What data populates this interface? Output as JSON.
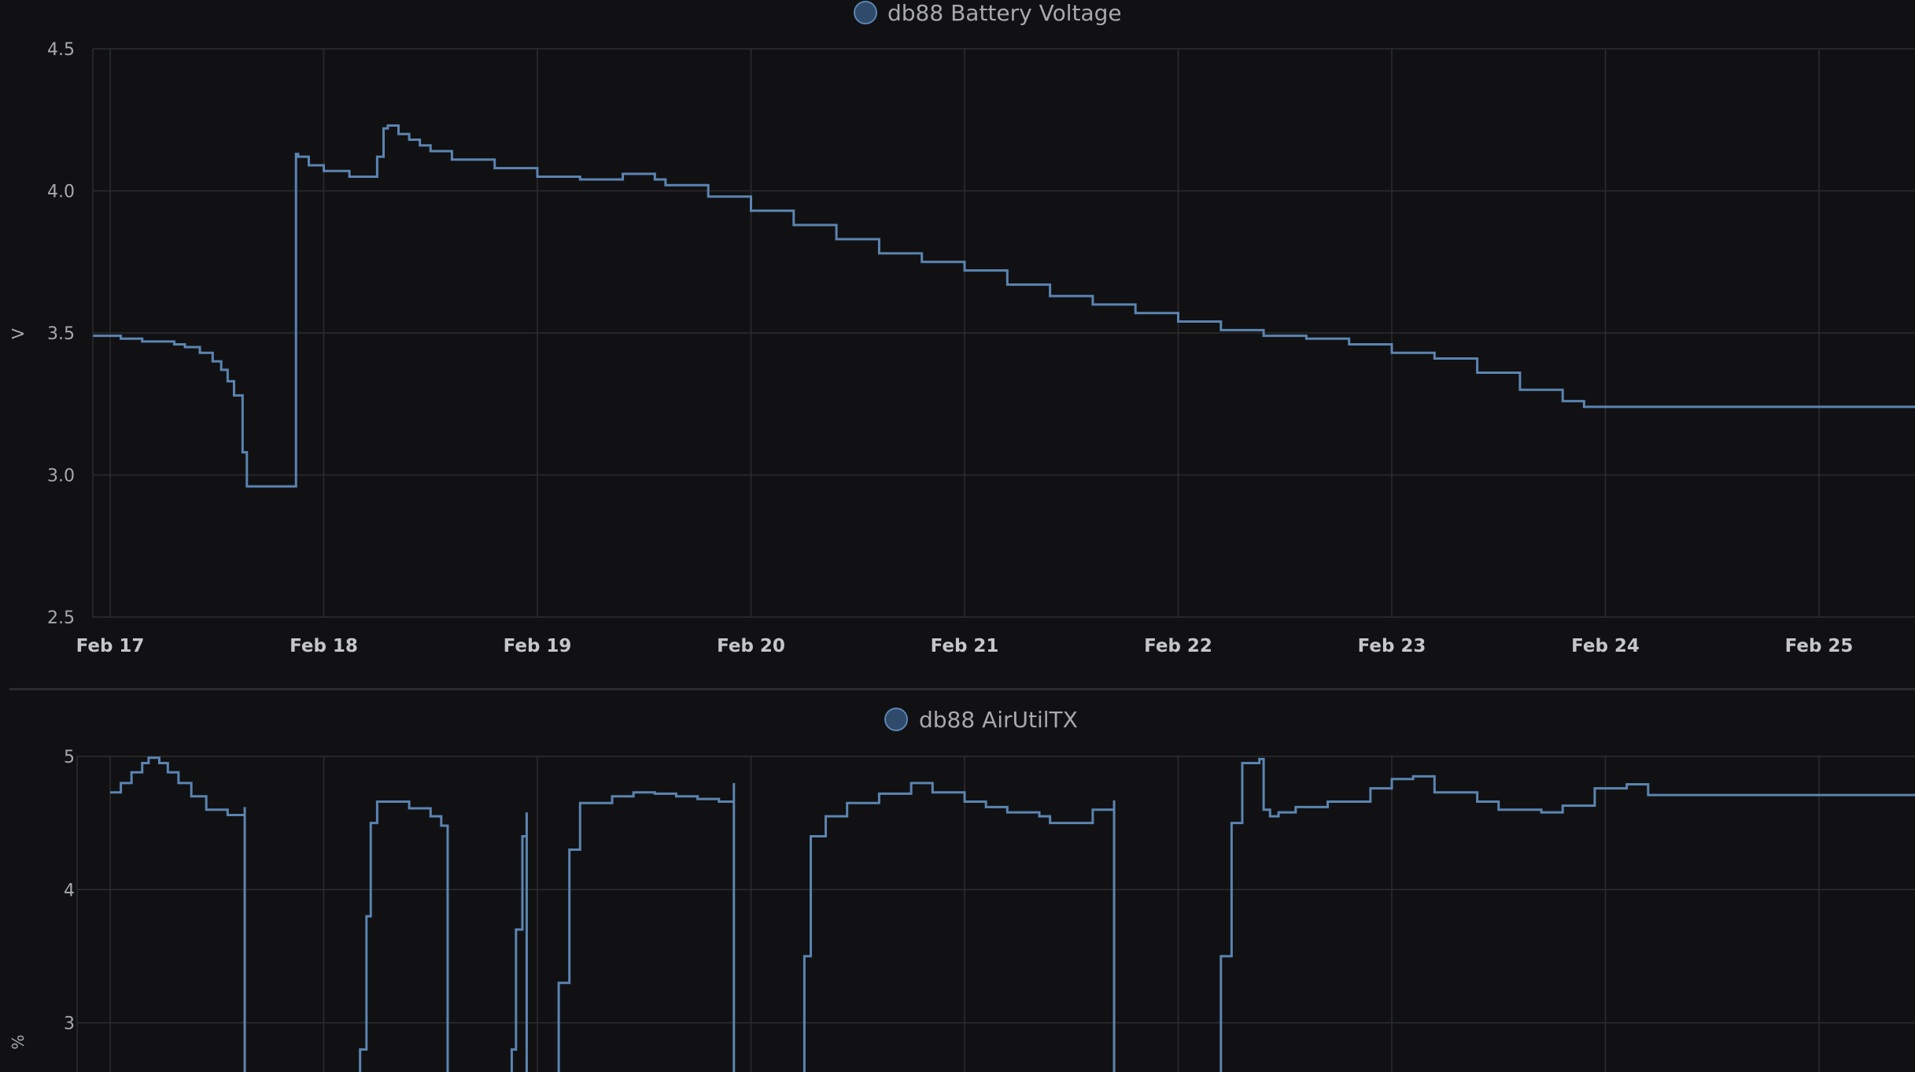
{
  "colors": {
    "background": "#111113",
    "series": "#5b84b1",
    "legend_swatch_fill": "#2f4a6a",
    "grid": "#2c2d30"
  },
  "chart_data": [
    {
      "type": "line",
      "step": true,
      "title": "db88 Battery Voltage",
      "legend": [
        "db88 Battery Voltage"
      ],
      "legend_position": "top-center",
      "ylabel": "V",
      "xlabel": "",
      "ylim": [
        2.5,
        4.5
      ],
      "y_ticks": [
        "2.5",
        "3.0",
        "3.5",
        "4.0",
        "4.5"
      ],
      "x_ticks": [
        "Feb 17",
        "Feb 18",
        "Feb 19",
        "Feb 20",
        "Feb 21",
        "Feb 22",
        "Feb 23",
        "Feb 24",
        "Feb 25"
      ],
      "grid": true,
      "series": [
        {
          "name": "db88 Battery Voltage",
          "x": [
            -0.08,
            0.05,
            0.15,
            0.3,
            0.35,
            0.42,
            0.48,
            0.52,
            0.55,
            0.58,
            0.6,
            0.62,
            0.64,
            0.66,
            0.7,
            0.86,
            0.87,
            0.88,
            0.93,
            1.0,
            1.12,
            1.2,
            1.25,
            1.28,
            1.3,
            1.35,
            1.4,
            1.45,
            1.5,
            1.6,
            1.8,
            2.0,
            2.2,
            2.4,
            2.45,
            2.55,
            2.6,
            2.8,
            3.0,
            3.2,
            3.4,
            3.6,
            3.8,
            4.0,
            4.2,
            4.4,
            4.6,
            4.8,
            5.0,
            5.2,
            5.4,
            5.6,
            5.8,
            6.0,
            6.2,
            6.4,
            6.6,
            6.8,
            6.9,
            6.95,
            7.0,
            7.05,
            7.08,
            7.1,
            7.11,
            7.5,
            8.0,
            8.5
          ],
          "y": [
            3.49,
            3.48,
            3.47,
            3.46,
            3.45,
            3.43,
            3.4,
            3.37,
            3.33,
            3.28,
            3.28,
            3.08,
            2.96,
            2.96,
            2.96,
            2.96,
            4.13,
            4.12,
            4.09,
            4.07,
            4.05,
            4.05,
            4.12,
            4.22,
            4.23,
            4.2,
            4.18,
            4.16,
            4.14,
            4.11,
            4.08,
            4.05,
            4.04,
            4.06,
            4.06,
            4.04,
            4.02,
            3.98,
            3.93,
            3.88,
            3.83,
            3.78,
            3.75,
            3.72,
            3.67,
            3.63,
            3.6,
            3.57,
            3.54,
            3.51,
            3.49,
            3.48,
            3.46,
            3.43,
            3.41,
            3.36,
            3.3,
            3.26,
            3.24,
            3.24,
            3.24,
            3.24,
            3.24,
            3.24,
            3.24,
            3.24,
            3.24,
            3.24
          ]
        }
      ]
    },
    {
      "type": "line",
      "step": true,
      "title": "db88 AirUtilTX",
      "legend": [
        "db88 AirUtilTX"
      ],
      "legend_position": "top-center",
      "ylabel": "%",
      "xlabel": "",
      "ylim": [
        2.3,
        5
      ],
      "y_ticks": [
        "3",
        "4",
        "5"
      ],
      "grid": true,
      "series": [
        {
          "name": "db88 AirUtilTX",
          "x": [
            0.0,
            0.05,
            0.1,
            0.15,
            0.18,
            0.23,
            0.27,
            0.32,
            0.38,
            0.45,
            0.55,
            0.63,
            0.63,
            1.15,
            1.17,
            1.2,
            1.22,
            1.25,
            1.4,
            1.5,
            1.55,
            1.58,
            1.58,
            1.83,
            1.88,
            1.9,
            1.93,
            1.95,
            1.95,
            2.05,
            2.1,
            2.15,
            2.2,
            2.35,
            2.45,
            2.55,
            2.65,
            2.75,
            2.85,
            2.92,
            2.92,
            3.2,
            3.25,
            3.28,
            3.35,
            3.45,
            3.6,
            3.75,
            3.85,
            4.0,
            4.1,
            4.2,
            4.35,
            4.4,
            4.6,
            4.7,
            4.7,
            5.15,
            5.2,
            5.25,
            5.3,
            5.38,
            5.4,
            5.43,
            5.47,
            5.55,
            5.7,
            5.9,
            6.0,
            6.1,
            6.2,
            6.4,
            6.5,
            6.7,
            6.8,
            6.95,
            7.1,
            7.2,
            7.5,
            8.0,
            8.5
          ],
          "y": [
            4.73,
            4.8,
            4.88,
            4.95,
            4.99,
            4.95,
            4.88,
            4.8,
            4.7,
            4.6,
            4.56,
            4.62,
            2.3,
            2.3,
            2.8,
            3.8,
            4.5,
            4.66,
            4.61,
            4.55,
            4.48,
            4.48,
            2.3,
            2.3,
            2.8,
            3.7,
            4.4,
            4.58,
            2.3,
            2.3,
            3.3,
            4.3,
            4.65,
            4.7,
            4.73,
            4.72,
            4.7,
            4.68,
            4.66,
            4.8,
            2.3,
            2.3,
            3.5,
            4.4,
            4.55,
            4.65,
            4.72,
            4.8,
            4.73,
            4.66,
            4.62,
            4.58,
            4.55,
            4.5,
            4.6,
            4.67,
            2.3,
            2.3,
            3.5,
            4.5,
            4.95,
            4.98,
            4.6,
            4.55,
            4.58,
            4.62,
            4.66,
            4.76,
            4.83,
            4.85,
            4.73,
            4.66,
            4.6,
            4.58,
            4.63,
            4.76,
            4.79,
            4.71,
            4.71,
            4.71,
            4.71
          ]
        }
      ]
    }
  ]
}
